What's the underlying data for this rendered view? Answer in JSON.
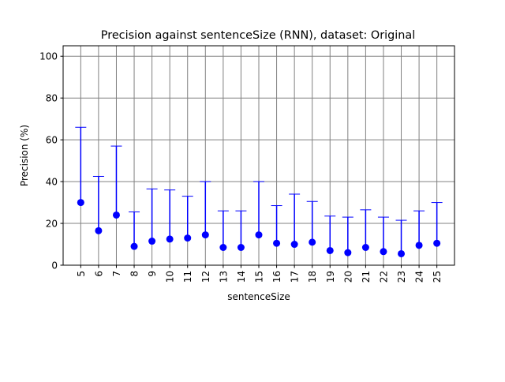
{
  "chart_data": {
    "type": "scatter",
    "title": "Precision against sentenceSize (RNN), dataset: Original",
    "xlabel": "sentenceSize",
    "ylabel": "Precision (%)",
    "categories": [
      "5",
      "6",
      "7",
      "8",
      "9",
      "10",
      "11",
      "12",
      "13",
      "14",
      "15",
      "16",
      "17",
      "18",
      "19",
      "20",
      "21",
      "22",
      "23",
      "24",
      "25"
    ],
    "series": [
      {
        "values": [
          30,
          16.5,
          24,
          9,
          11.5,
          12.5,
          13,
          14.5,
          8.5,
          8.5,
          14.5,
          10.5,
          10,
          11,
          7,
          6,
          8.5,
          6.5,
          5.5,
          9.5,
          10.5
        ],
        "error_lower": [
          0,
          0,
          0,
          0,
          0,
          0,
          0,
          0,
          0,
          0,
          0,
          0,
          0,
          0,
          0,
          0,
          0,
          0,
          0,
          0,
          0
        ],
        "error_upper": [
          66,
          42.5,
          57,
          25.5,
          36.5,
          36,
          33,
          40,
          26,
          26,
          40,
          28.5,
          34,
          30.5,
          23.5,
          23,
          26.5,
          23,
          21.5,
          26,
          30
        ]
      }
    ],
    "ylim": [
      0,
      105
    ],
    "yticks": [
      0,
      20,
      40,
      60,
      80,
      100
    ],
    "grid": true,
    "legend": false,
    "colors": {
      "marker": "#0000ff",
      "grid": "#808080",
      "axes": "#000000"
    }
  }
}
